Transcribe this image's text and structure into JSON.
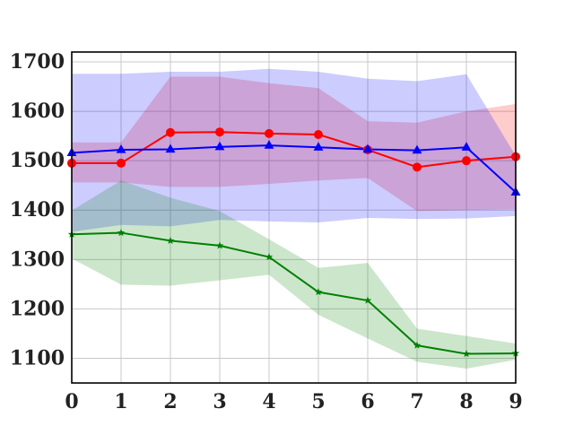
{
  "chart_data": {
    "type": "line",
    "x": [
      0,
      1,
      2,
      3,
      4,
      5,
      6,
      7,
      8,
      9
    ],
    "xlim": [
      0,
      9
    ],
    "ylim": [
      1050,
      1720
    ],
    "xticks": [
      0,
      1,
      2,
      3,
      4,
      5,
      6,
      7,
      8,
      9
    ],
    "yticks": [
      1100,
      1200,
      1300,
      1400,
      1500,
      1600,
      1700
    ],
    "grid": true,
    "title": "",
    "xlabel": "",
    "ylabel": "",
    "series": [
      {
        "color": "#ff0000",
        "marker": "circle",
        "values": [
          1495,
          1495,
          1557,
          1558,
          1555,
          1553,
          1522,
          1487,
          1500,
          1508
        ],
        "band_upper": [
          1537,
          1537,
          1670,
          1670,
          1657,
          1647,
          1580,
          1577,
          1600,
          1615
        ],
        "band_lower": [
          1456,
          1456,
          1447,
          1447,
          1453,
          1460,
          1465,
          1398,
          1400,
          1402
        ]
      },
      {
        "color": "#0000ff",
        "marker": "triangle",
        "values": [
          1516,
          1522,
          1523,
          1528,
          1531,
          1527,
          1523,
          1521,
          1527,
          1436
        ],
        "band_upper": [
          1676,
          1676,
          1680,
          1680,
          1686,
          1680,
          1666,
          1661,
          1675,
          1510
        ],
        "band_lower": [
          1356,
          1370,
          1367,
          1380,
          1377,
          1375,
          1384,
          1382,
          1383,
          1388
        ]
      },
      {
        "color": "#008000",
        "marker": "star",
        "values": [
          1351,
          1354,
          1338,
          1328,
          1305,
          1234,
          1217,
          1126,
          1109,
          1110
        ],
        "band_upper": [
          1399,
          1460,
          1425,
          1398,
          1341,
          1283,
          1293,
          1160,
          1145,
          1130
        ],
        "band_lower": [
          1302,
          1249,
          1247,
          1258,
          1269,
          1188,
          1140,
          1093,
          1079,
          1097
        ]
      }
    ]
  }
}
